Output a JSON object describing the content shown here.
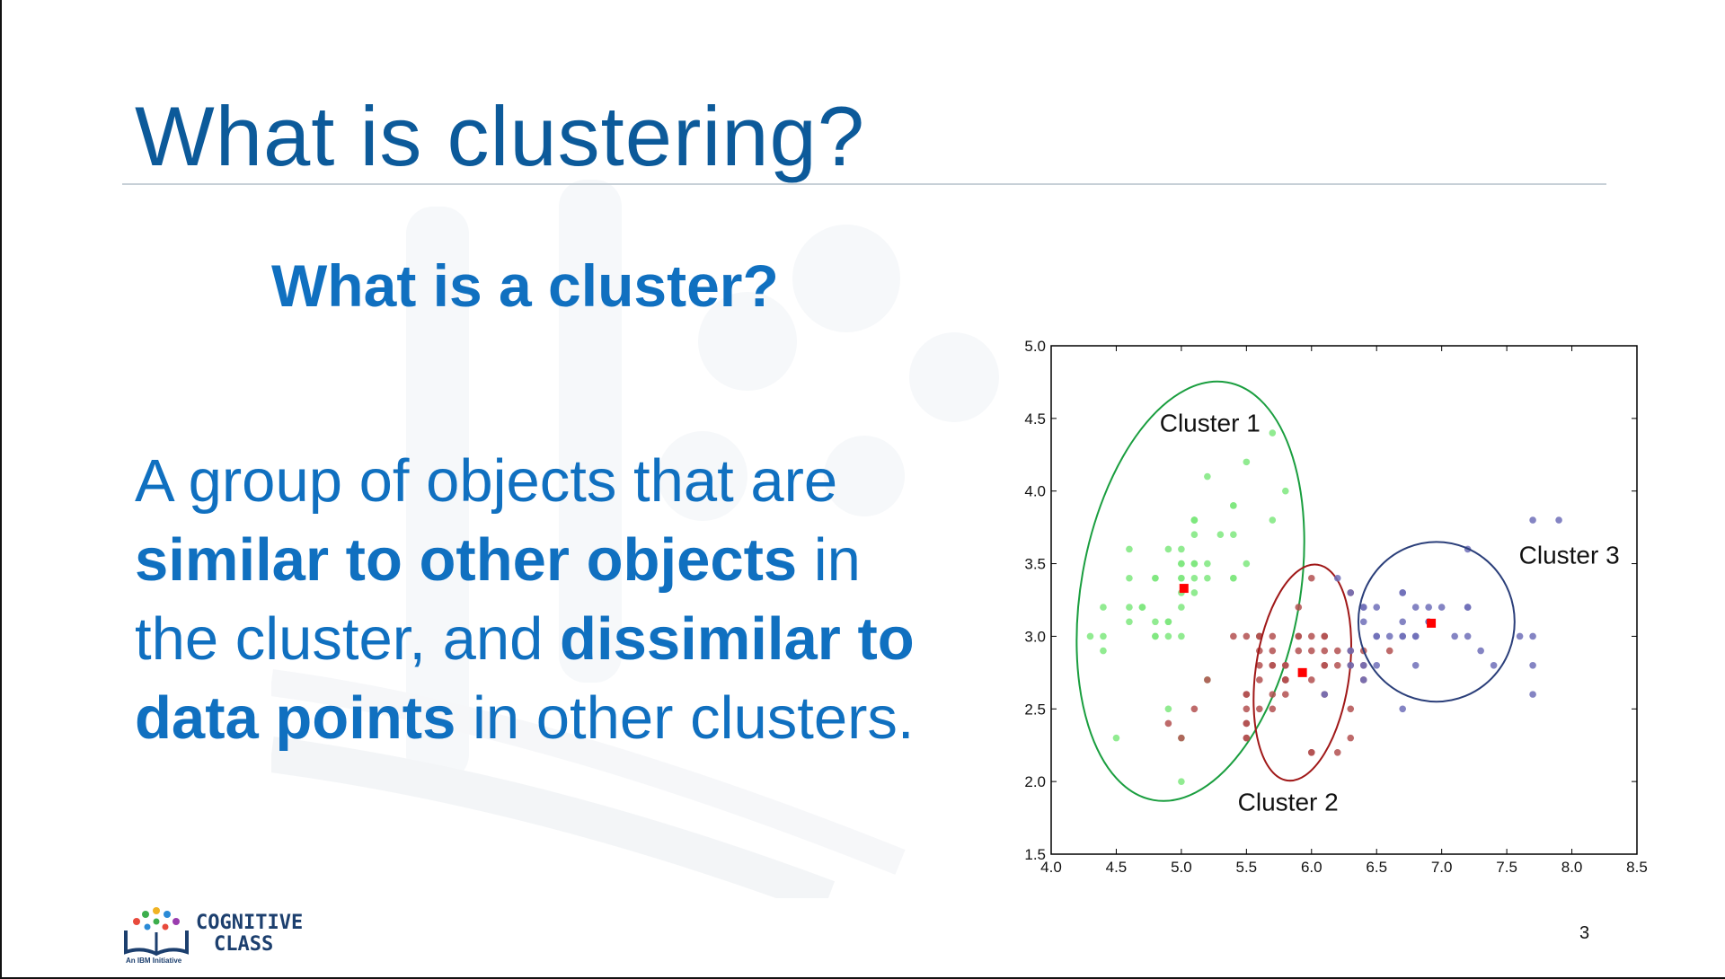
{
  "slide": {
    "title": "What is clustering?",
    "subtitle": "What is a cluster?",
    "body": {
      "part1": "A group of objects that are ",
      "bold1": "similar to other objects",
      "part2": " in the cluster, and ",
      "bold2": "dissimilar to data points",
      "part3": " in other clusters."
    },
    "page_number": "3",
    "logo": {
      "line1": "COGNITIVE",
      "line2": "CLASS",
      "tagline": "An IBM Initiative"
    }
  },
  "colors": {
    "title": "#0c5a9a",
    "text": "#1070c0",
    "cluster1": "#1a9e3f",
    "cluster2": "#a01818",
    "cluster3": "#2b3f7a",
    "centroid": "#ff0000"
  },
  "chart_data": {
    "type": "scatter",
    "xlim": [
      4.0,
      8.5
    ],
    "ylim": [
      1.5,
      5.0
    ],
    "xticks": [
      "4.0",
      "4.5",
      "5.0",
      "5.5",
      "6.0",
      "6.5",
      "7.0",
      "7.5",
      "8.0",
      "8.5"
    ],
    "yticks": [
      "1.5",
      "2.0",
      "2.5",
      "3.0",
      "3.5",
      "4.0",
      "4.5",
      "5.0"
    ],
    "grid": false,
    "clusters": [
      {
        "name": "Cluster 1",
        "label_pos": [
          5.22,
          4.41
        ],
        "color": "#1a9e3f",
        "point_color": "#7ee87e",
        "centroid": [
          5.02,
          3.33
        ],
        "ellipse": {
          "cx": 5.07,
          "cy": 3.31,
          "rx": 0.84,
          "ry": 1.46,
          "angle": 10
        },
        "points": [
          [
            5.1,
            3.5
          ],
          [
            4.9,
            3.0
          ],
          [
            4.7,
            3.2
          ],
          [
            4.6,
            3.1
          ],
          [
            5.0,
            3.6
          ],
          [
            5.4,
            3.9
          ],
          [
            4.6,
            3.4
          ],
          [
            5.0,
            3.4
          ],
          [
            4.4,
            2.9
          ],
          [
            4.9,
            3.1
          ],
          [
            5.4,
            3.7
          ],
          [
            4.8,
            3.4
          ],
          [
            4.8,
            3.0
          ],
          [
            4.3,
            3.0
          ],
          [
            5.8,
            4.0
          ],
          [
            5.7,
            4.4
          ],
          [
            5.4,
            3.9
          ],
          [
            5.1,
            3.5
          ],
          [
            5.7,
            3.8
          ],
          [
            5.1,
            3.8
          ],
          [
            5.4,
            3.4
          ],
          [
            5.1,
            3.7
          ],
          [
            4.6,
            3.6
          ],
          [
            5.1,
            3.3
          ],
          [
            4.8,
            3.4
          ],
          [
            5.0,
            3.0
          ],
          [
            5.0,
            3.4
          ],
          [
            5.2,
            3.5
          ],
          [
            5.2,
            3.4
          ],
          [
            4.7,
            3.2
          ],
          [
            4.8,
            3.1
          ],
          [
            5.4,
            3.4
          ],
          [
            5.2,
            4.1
          ],
          [
            5.5,
            4.2
          ],
          [
            4.9,
            3.1
          ],
          [
            5.0,
            3.2
          ],
          [
            5.5,
            3.5
          ],
          [
            4.9,
            3.6
          ],
          [
            4.4,
            3.0
          ],
          [
            5.1,
            3.4
          ],
          [
            5.0,
            3.5
          ],
          [
            4.5,
            2.3
          ],
          [
            4.4,
            3.2
          ],
          [
            5.0,
            3.5
          ],
          [
            5.1,
            3.8
          ],
          [
            4.8,
            3.0
          ],
          [
            5.1,
            3.8
          ],
          [
            4.6,
            3.2
          ],
          [
            5.3,
            3.7
          ],
          [
            5.0,
            3.3
          ],
          [
            4.9,
            2.5
          ],
          [
            5.0,
            2.3
          ],
          [
            5.2,
            2.7
          ],
          [
            5.6,
            3.0
          ],
          [
            5.0,
            2.0
          ]
        ]
      },
      {
        "name": "Cluster 2",
        "label_pos": [
          5.82,
          1.8
        ],
        "color": "#a01818",
        "point_color": "#b35050",
        "centroid": [
          5.93,
          2.75
        ],
        "ellipse": {
          "cx": 5.93,
          "cy": 2.75,
          "rx": 0.36,
          "ry": 0.75,
          "angle": 8
        },
        "points": [
          [
            5.5,
            2.3
          ],
          [
            5.7,
            2.8
          ],
          [
            6.3,
            3.3
          ],
          [
            4.9,
            2.4
          ],
          [
            6.6,
            2.9
          ],
          [
            5.2,
            2.7
          ],
          [
            5.9,
            3.0
          ],
          [
            6.0,
            2.2
          ],
          [
            6.1,
            2.9
          ],
          [
            5.6,
            2.9
          ],
          [
            5.6,
            3.0
          ],
          [
            5.8,
            2.7
          ],
          [
            6.2,
            2.2
          ],
          [
            5.6,
            2.5
          ],
          [
            5.9,
            3.2
          ],
          [
            6.1,
            2.8
          ],
          [
            6.3,
            2.5
          ],
          [
            6.1,
            2.8
          ],
          [
            6.4,
            2.9
          ],
          [
            5.7,
            2.6
          ],
          [
            5.5,
            2.4
          ],
          [
            5.5,
            2.4
          ],
          [
            5.8,
            2.7
          ],
          [
            6.0,
            2.7
          ],
          [
            5.4,
            3.0
          ],
          [
            6.0,
            3.4
          ],
          [
            6.3,
            2.3
          ],
          [
            5.6,
            3.0
          ],
          [
            5.5,
            2.5
          ],
          [
            5.5,
            2.6
          ],
          [
            6.1,
            3.0
          ],
          [
            5.8,
            2.6
          ],
          [
            5.0,
            2.3
          ],
          [
            5.6,
            2.7
          ],
          [
            5.7,
            3.0
          ],
          [
            5.7,
            2.9
          ],
          [
            6.2,
            2.9
          ],
          [
            5.1,
            2.5
          ],
          [
            5.7,
            2.8
          ],
          [
            5.8,
            2.8
          ],
          [
            6.3,
            2.9
          ],
          [
            5.6,
            2.8
          ],
          [
            6.0,
            2.2
          ],
          [
            6.2,
            2.8
          ],
          [
            6.1,
            3.0
          ],
          [
            6.4,
            2.8
          ],
          [
            6.3,
            2.8
          ],
          [
            6.1,
            2.6
          ],
          [
            6.0,
            3.0
          ],
          [
            5.8,
            2.7
          ],
          [
            5.7,
            2.5
          ],
          [
            5.8,
            2.8
          ],
          [
            6.4,
            2.7
          ],
          [
            5.9,
            3.0
          ],
          [
            5.5,
            2.6
          ],
          [
            6.0,
            2.9
          ],
          [
            5.5,
            2.3
          ],
          [
            5.9,
            2.9
          ],
          [
            5.8,
            2.7
          ],
          [
            5.5,
            3.0
          ]
        ]
      },
      {
        "name": "Cluster 3",
        "label_pos": [
          7.98,
          3.5
        ],
        "color": "#2b3f7a",
        "point_color": "#6e6eb8",
        "centroid": [
          6.92,
          3.09
        ],
        "ellipse": {
          "cx": 6.96,
          "cy": 3.1,
          "rx": 0.6,
          "ry": 0.55,
          "angle": 0
        },
        "points": [
          [
            7.0,
            3.2
          ],
          [
            6.4,
            3.2
          ],
          [
            6.9,
            3.1
          ],
          [
            6.5,
            2.8
          ],
          [
            6.3,
            3.3
          ],
          [
            6.7,
            3.1
          ],
          [
            6.7,
            3.0
          ],
          [
            6.6,
            3.0
          ],
          [
            6.8,
            3.0
          ],
          [
            6.7,
            3.3
          ],
          [
            7.2,
            3.6
          ],
          [
            7.7,
            3.8
          ],
          [
            7.7,
            2.6
          ],
          [
            6.9,
            3.2
          ],
          [
            7.7,
            2.8
          ],
          [
            6.7,
            3.3
          ],
          [
            7.2,
            3.2
          ],
          [
            7.2,
            3.0
          ],
          [
            7.4,
            2.8
          ],
          [
            7.9,
            3.8
          ],
          [
            6.4,
            2.8
          ],
          [
            6.3,
            2.8
          ],
          [
            6.1,
            2.6
          ],
          [
            7.7,
            3.0
          ],
          [
            6.4,
            3.1
          ],
          [
            6.9,
            3.1
          ],
          [
            6.8,
            3.2
          ],
          [
            6.7,
            3.0
          ],
          [
            6.5,
            3.0
          ],
          [
            6.2,
            3.4
          ],
          [
            6.5,
            3.2
          ],
          [
            7.1,
            3.0
          ],
          [
            6.3,
            2.9
          ],
          [
            6.5,
            3.0
          ],
          [
            7.6,
            3.0
          ],
          [
            7.3,
            2.9
          ],
          [
            6.7,
            2.5
          ],
          [
            7.2,
            3.2
          ],
          [
            6.4,
            2.7
          ],
          [
            6.8,
            3.0
          ],
          [
            6.8,
            2.8
          ],
          [
            6.4,
            3.2
          ]
        ]
      }
    ]
  }
}
